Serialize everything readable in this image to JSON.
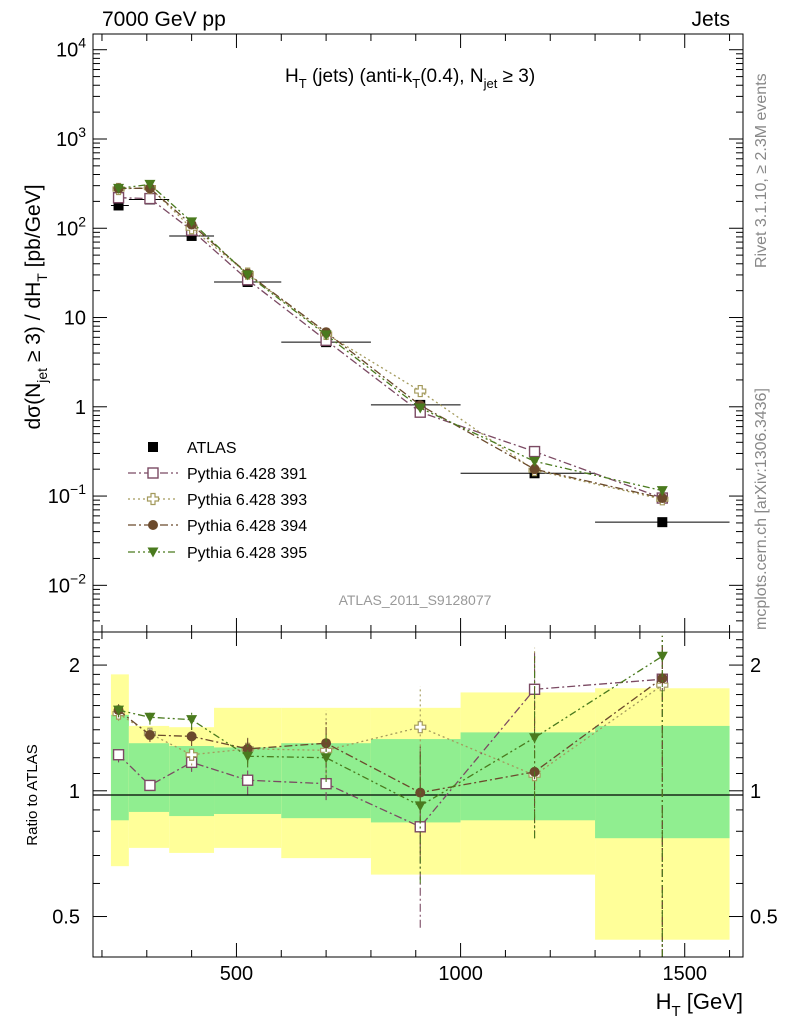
{
  "header": {
    "left": "7000 GeV pp",
    "right": "Jets"
  },
  "side_labels": {
    "rivet": "Rivet 3.1.10, ≥ 2.3M events",
    "mcplots": "mcplots.cern.ch [arXiv:1306.3436]"
  },
  "analysis_id": "ATLAS_2011_S9128077",
  "colors": {
    "atlas": "#000000",
    "p391": "#7b4a63",
    "p393": "#a39a5c",
    "p394": "#6b4a2c",
    "p395": "#4a7a1e",
    "band_green": "#90ee90",
    "band_yellow": "#ffff99"
  },
  "chart_data": [
    {
      "type": "scatter",
      "panel": "main",
      "title": "H_T (jets) (anti-k_T(0.4), N_jet ≥ 3)",
      "title_parts": {
        "h": "H",
        "hsub": "T",
        "mid": " (jets) (anti-k",
        "ksub": "T",
        "tail1": "(0.4), N",
        "nsub": "jet",
        "tail2": " ≥ 3)"
      },
      "ylabel": "dσ(N_jet ≥ 3) / dH_T [pb/GeV]",
      "ylabel_parts": {
        "a": "dσ(N",
        "asub": "jet",
        "b": " ≥ 3) / dH",
        "bsub": "T",
        "c": " [pb/GeV]"
      },
      "yscale": "log",
      "ylim": [
        0.003,
        15000
      ],
      "xlim": [
        180,
        1630
      ],
      "ytick_labels": [
        {
          "base": "10",
          "exp": "4"
        },
        {
          "base": "10",
          "exp": "3"
        },
        {
          "base": "10",
          "exp": "2"
        },
        {
          "base": "10",
          "exp": ""
        },
        {
          "base": "1",
          "exp": ""
        },
        {
          "base": "10",
          "exp": "−1"
        },
        {
          "base": "10",
          "exp": "−2"
        }
      ],
      "ytick_values": [
        10000,
        1000,
        100,
        10,
        1,
        0.1,
        0.01
      ],
      "legend_position": "lower-left",
      "series": [
        {
          "name": "ATLAS",
          "marker": "square-filled",
          "x": [
            237,
            307,
            400,
            525,
            700,
            910,
            1165,
            1450
          ],
          "xerr": [
            [
              220,
              260
            ],
            [
              260,
              350
            ],
            [
              350,
              450
            ],
            [
              450,
              600
            ],
            [
              600,
              800
            ],
            [
              800,
              1000
            ],
            [
              1000,
              1300
            ],
            [
              1300,
              1600
            ]
          ],
          "y": [
            180,
            210,
            82,
            25,
            5.3,
            1.05,
            0.18,
            0.051
          ],
          "yerr_rel": [
            [
              0.65,
              1.85
            ],
            [
              0.88,
              1.43
            ],
            [
              0.72,
              1.4
            ],
            [
              0.73,
              1.38
            ],
            [
              0.68,
              1.42
            ],
            [
              0.61,
              1.57
            ],
            [
              0.65,
              1.6
            ],
            [
              0.43,
              1.77
            ]
          ]
        },
        {
          "name": "Pythia 6.428 391",
          "marker": "square-open",
          "linestyle": "dashdot",
          "x": [
            237,
            307,
            400,
            525,
            700,
            910,
            1165,
            1450
          ],
          "y": [
            220,
            215,
            95,
            26.5,
            5.55,
            0.87,
            0.315,
            0.095
          ]
        },
        {
          "name": "Pythia 6.428 393",
          "marker": "cross-open",
          "linestyle": "dotted",
          "x": [
            237,
            307,
            400,
            525,
            700,
            910,
            1165,
            1450
          ],
          "y": [
            275,
            285,
            100,
            31,
            6.55,
            1.5,
            0.195,
            0.092
          ]
        },
        {
          "name": "Pythia 6.428 394",
          "marker": "circle-filled",
          "linestyle": "dashdot",
          "x": [
            237,
            307,
            400,
            525,
            700,
            910,
            1165,
            1450
          ],
          "y": [
            280,
            280,
            110,
            31,
            6.85,
            1.04,
            0.2,
            0.095
          ]
        },
        {
          "name": "Pythia 6.428 395",
          "marker": "triangle-down-filled",
          "linestyle": "dashdotdot",
          "x": [
            237,
            307,
            400,
            525,
            700,
            910,
            1165,
            1450
          ],
          "y": [
            280,
            310,
            118,
            30,
            6.4,
            0.97,
            0.245,
            0.115
          ]
        }
      ]
    },
    {
      "type": "scatter",
      "panel": "ratio",
      "ylabel": "Ratio to ATLAS",
      "xlabel": "H_T [GeV]",
      "xlabel_parts": {
        "a": "H",
        "asub": "T",
        "b": " [GeV]"
      },
      "yscale": "log",
      "ylim": [
        0.4,
        2.4
      ],
      "xlim": [
        180,
        1630
      ],
      "xticks": [
        500,
        1000,
        1500
      ],
      "xtick_labels": [
        "500",
        "1000",
        "1500"
      ],
      "yticks": [
        0.5,
        1,
        2
      ],
      "ytick_labels": [
        "0.5",
        "1",
        "2"
      ],
      "bands": {
        "x_edges": [
          220,
          260,
          350,
          450,
          600,
          800,
          1000,
          1300,
          1600
        ],
        "green_low": [
          0.85,
          0.89,
          0.87,
          0.88,
          0.86,
          0.84,
          0.85,
          0.77
        ],
        "green_high": [
          1.52,
          1.3,
          1.28,
          1.27,
          1.3,
          1.33,
          1.38,
          1.43
        ],
        "yellow_low": [
          0.66,
          0.73,
          0.71,
          0.73,
          0.69,
          0.63,
          0.63,
          0.44
        ],
        "yellow_high": [
          1.9,
          1.43,
          1.42,
          1.58,
          1.58,
          1.58,
          1.72,
          1.76
        ]
      },
      "series": [
        {
          "name": "Pythia 6.428 391",
          "y": [
            1.22,
            1.03,
            1.17,
            1.06,
            1.04,
            0.82,
            1.75,
            1.85
          ],
          "yerr": [
            [
              1.17,
              1.27
            ],
            [
              1.0,
              1.06
            ],
            [
              1.11,
              1.22
            ],
            [
              0.98,
              1.14
            ],
            [
              0.95,
              1.14
            ],
            [
              0.47,
              1.26
            ],
            [
              1.32,
              2.18
            ],
            [
              0.4,
              2.35
            ]
          ]
        },
        {
          "name": "Pythia 6.428 393",
          "y": [
            1.53,
            1.37,
            1.22,
            1.26,
            1.25,
            1.42,
            1.09,
            1.79
          ],
          "yerr": [
            [
              1.47,
              1.58
            ],
            [
              1.32,
              1.42
            ],
            [
              1.15,
              1.28
            ],
            [
              1.16,
              1.34
            ],
            [
              1.06,
              1.56
            ],
            [
              0.97,
              1.78
            ],
            [
              0.77,
              2.2
            ],
            [
              0.4,
              2.35
            ]
          ]
        },
        {
          "name": "Pythia 6.428 394",
          "y": [
            1.56,
            1.36,
            1.35,
            1.26,
            1.3,
            0.99,
            1.11,
            1.86
          ],
          "yerr": [
            [
              1.5,
              1.62
            ],
            [
              1.31,
              1.42
            ],
            [
              1.28,
              1.42
            ],
            [
              1.17,
              1.35
            ],
            [
              1.14,
              1.46
            ],
            [
              0.7,
              1.28
            ],
            [
              0.77,
              2.1
            ],
            [
              0.4,
              2.35
            ]
          ]
        },
        {
          "name": "Pythia 6.428 395",
          "y": [
            1.56,
            1.5,
            1.48,
            1.21,
            1.2,
            0.92,
            1.34,
            2.1
          ],
          "yerr": [
            [
              1.5,
              1.62
            ],
            [
              1.44,
              1.55
            ],
            [
              1.4,
              1.55
            ],
            [
              1.14,
              1.29
            ],
            [
              1.05,
              1.36
            ],
            [
              0.6,
              1.24
            ],
            [
              0.77,
              2.1
            ],
            [
              0.4,
              2.35
            ]
          ]
        }
      ]
    }
  ]
}
